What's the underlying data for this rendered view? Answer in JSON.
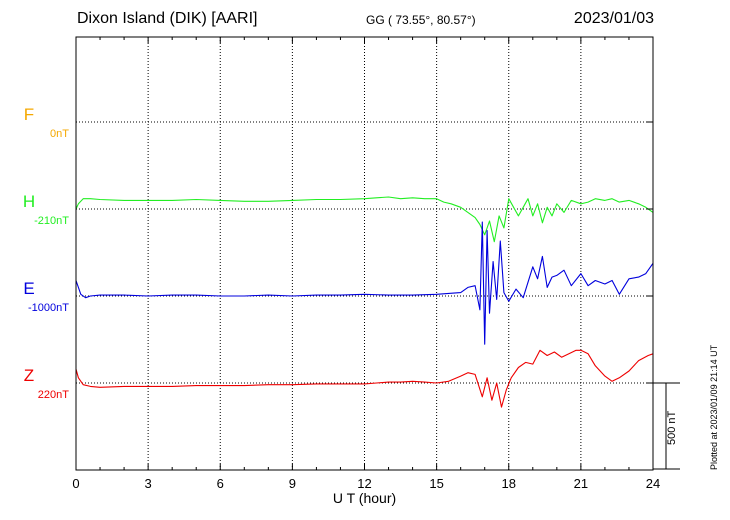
{
  "header": {
    "station": "Dixon Island (DIK)  [AARI]",
    "coordinates": "GG ( 73.55°,  80.57°)",
    "date": "2023/01/03"
  },
  "plotted_note": "Plotted at 2023/01/09 21:14 UT",
  "scale_bar_label": "500 nT",
  "chart_data": {
    "type": "line",
    "title": "Dixon Island (DIK)  [AARI]",
    "xlabel": "U T (hour)",
    "ylabel": "",
    "xlim": [
      0,
      24
    ],
    "x_ticks": [
      0,
      3,
      6,
      9,
      12,
      15,
      18,
      21,
      24
    ],
    "grid": true,
    "scale_bar_nT": 500,
    "series": [
      {
        "name": "F",
        "baseline_label": "0nT",
        "color": "#f5a800",
        "x": [],
        "values": []
      },
      {
        "name": "H",
        "baseline_label": "-210nT",
        "color": "#22ee22",
        "x": [
          0,
          0.1,
          0.3,
          0.6,
          1,
          2,
          3,
          4,
          5,
          6,
          7,
          8,
          9,
          10,
          11,
          12,
          12.5,
          13,
          13.5,
          14,
          14.5,
          15,
          15.3,
          15.6,
          16,
          16.3,
          16.6,
          16.8,
          17.0,
          17.2,
          17.4,
          17.6,
          17.8,
          18.0,
          18.2,
          18.4,
          18.6,
          18.8,
          19.0,
          19.2,
          19.4,
          19.6,
          19.8,
          20.0,
          20.3,
          20.6,
          21,
          21.3,
          21.6,
          22,
          22.3,
          22.6,
          23,
          23.4,
          23.7,
          24
        ],
        "values": [
          -210,
          -180,
          -150,
          -150,
          -155,
          -160,
          -160,
          -160,
          -155,
          -160,
          -165,
          -165,
          -160,
          -155,
          -155,
          -150,
          -145,
          -140,
          -150,
          -145,
          -150,
          -150,
          -170,
          -180,
          -200,
          -230,
          -260,
          -300,
          -360,
          -280,
          -400,
          -250,
          -320,
          -150,
          -200,
          -250,
          -200,
          -150,
          -250,
          -180,
          -290,
          -200,
          -250,
          -180,
          -230,
          -160,
          -180,
          -170,
          -150,
          -160,
          -150,
          -170,
          -160,
          -180,
          -200,
          -230
        ]
      },
      {
        "name": "E",
        "baseline_label": "-1000nT",
        "color": "#0000dd",
        "x": [
          0,
          0.2,
          0.4,
          0.6,
          1,
          2,
          3,
          4,
          5,
          6,
          7,
          8,
          9,
          10,
          11,
          12,
          13,
          14,
          15,
          15.5,
          16,
          16.3,
          16.6,
          16.8,
          16.9,
          17.0,
          17.1,
          17.2,
          17.35,
          17.5,
          17.65,
          17.8,
          18.0,
          18.3,
          18.6,
          19.0,
          19.2,
          19.4,
          19.6,
          19.8,
          20.0,
          20.3,
          20.6,
          21,
          21.3,
          21.6,
          22,
          22.3,
          22.6,
          23,
          23.4,
          23.7,
          24
        ],
        "values": [
          -910,
          -990,
          -1010,
          -1000,
          -995,
          -995,
          -1000,
          -995,
          -995,
          -1000,
          -1000,
          -995,
          -1000,
          -995,
          -995,
          -990,
          -995,
          -995,
          -990,
          -985,
          -980,
          -950,
          -940,
          -1080,
          -570,
          -1280,
          -620,
          -1100,
          -800,
          -1020,
          -680,
          -980,
          -1030,
          -960,
          -1010,
          -830,
          -900,
          -770,
          -950,
          -890,
          -880,
          -850,
          -940,
          -870,
          -940,
          -910,
          -930,
          -910,
          -990,
          -900,
          -890,
          -870,
          -810
        ]
      },
      {
        "name": "Z",
        "baseline_label": "220nT",
        "color": "#ee0000",
        "x": [
          0,
          0.1,
          0.3,
          0.6,
          1,
          2,
          3,
          4,
          5,
          6,
          7,
          8,
          9,
          10,
          11,
          12,
          12.5,
          13,
          13.5,
          14,
          14.5,
          15,
          15.5,
          16,
          16.3,
          16.6,
          16.9,
          17.1,
          17.3,
          17.5,
          17.7,
          17.9,
          18.1,
          18.4,
          18.7,
          19,
          19.3,
          19.6,
          19.9,
          20.2,
          20.5,
          20.8,
          21,
          21.3,
          21.6,
          22,
          22.3,
          22.6,
          23,
          23.4,
          23.8,
          24
        ],
        "values": [
          300,
          250,
          210,
          200,
          195,
          200,
          200,
          200,
          205,
          205,
          205,
          210,
          210,
          215,
          215,
          215,
          220,
          225,
          225,
          230,
          225,
          220,
          230,
          260,
          280,
          270,
          140,
          250,
          120,
          220,
          80,
          180,
          250,
          310,
          340,
          330,
          410,
          380,
          400,
          370,
          390,
          410,
          410,
          390,
          320,
          260,
          230,
          250,
          290,
          350,
          380,
          390
        ]
      }
    ]
  }
}
